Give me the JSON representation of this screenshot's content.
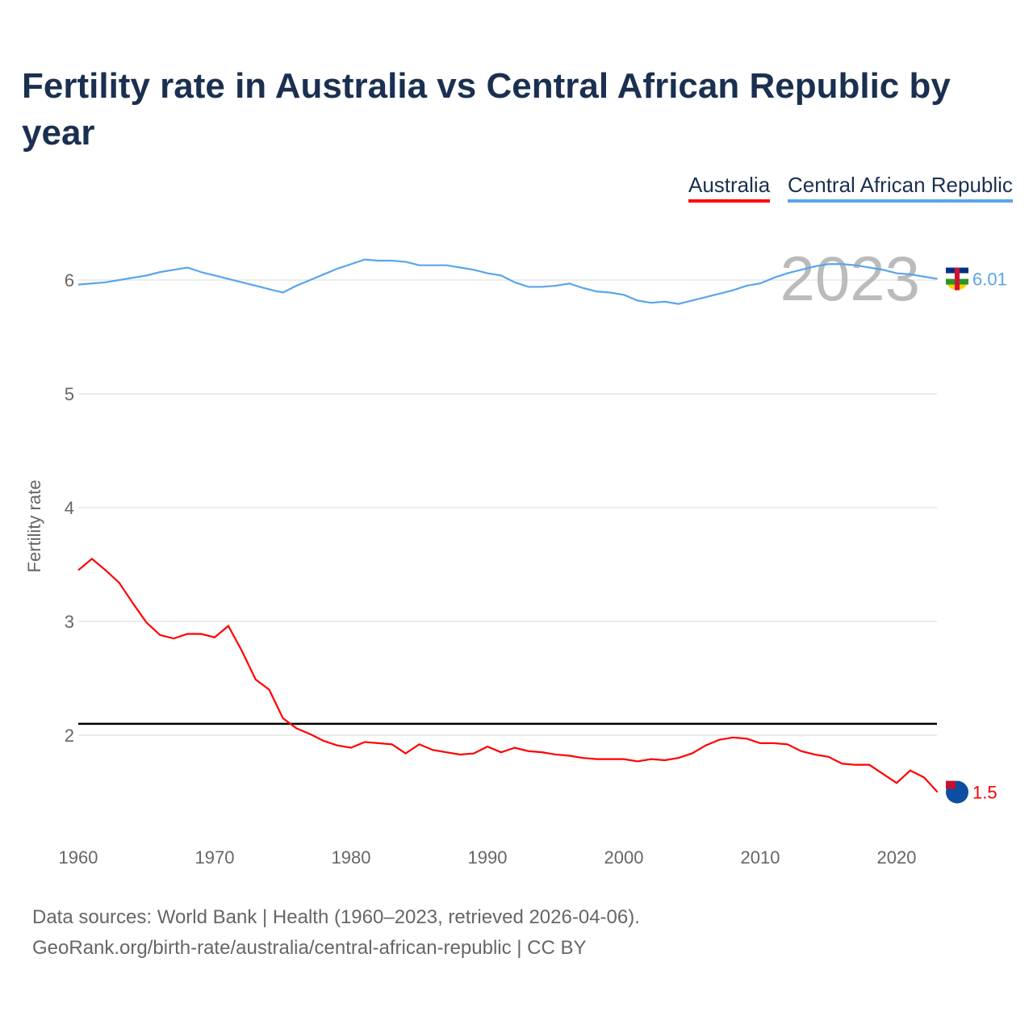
{
  "title": "Fertility rate in Australia vs Central African Republic by year",
  "footer": {
    "line1": "Data sources: World Bank | Health (1960–2023, retrieved 2026-04-06).",
    "line2": "GeoRank.org/birth-rate/australia/central-african-republic | CC BY"
  },
  "chart_data": {
    "type": "line",
    "title": "Fertility rate in Australia vs Central African Republic by year",
    "xlabel": "",
    "ylabel": "Fertility rate",
    "xlim": [
      1960,
      2023
    ],
    "ylim": [
      1.2,
      6.5
    ],
    "xticks": [
      1960,
      1970,
      1980,
      1990,
      2000,
      2010,
      2020
    ],
    "yticks": [
      2,
      3,
      4,
      5,
      6
    ],
    "grid": true,
    "legend": "top-right",
    "year_label": "2023",
    "reference_line": {
      "value": 2.1,
      "color": "#000000"
    },
    "x": [
      1960,
      1961,
      1962,
      1963,
      1964,
      1965,
      1966,
      1967,
      1968,
      1969,
      1970,
      1971,
      1972,
      1973,
      1974,
      1975,
      1976,
      1977,
      1978,
      1979,
      1980,
      1981,
      1982,
      1983,
      1984,
      1985,
      1986,
      1987,
      1988,
      1989,
      1990,
      1991,
      1992,
      1993,
      1994,
      1995,
      1996,
      1997,
      1998,
      1999,
      2000,
      2001,
      2002,
      2003,
      2004,
      2005,
      2006,
      2007,
      2008,
      2009,
      2010,
      2011,
      2012,
      2013,
      2014,
      2015,
      2016,
      2017,
      2018,
      2019,
      2020,
      2021,
      2022,
      2023
    ],
    "series": [
      {
        "name": "Australia",
        "color": "#ff0000",
        "end_label": "1.5",
        "flag": "australia-flag",
        "values": [
          3.45,
          3.55,
          3.45,
          3.34,
          3.16,
          2.99,
          2.88,
          2.85,
          2.89,
          2.89,
          2.86,
          2.96,
          2.74,
          2.49,
          2.4,
          2.15,
          2.06,
          2.01,
          1.95,
          1.91,
          1.89,
          1.94,
          1.93,
          1.92,
          1.84,
          1.92,
          1.87,
          1.85,
          1.83,
          1.84,
          1.9,
          1.85,
          1.89,
          1.86,
          1.85,
          1.83,
          1.82,
          1.8,
          1.79,
          1.79,
          1.79,
          1.77,
          1.79,
          1.78,
          1.8,
          1.84,
          1.91,
          1.96,
          1.98,
          1.97,
          1.93,
          1.93,
          1.92,
          1.86,
          1.83,
          1.81,
          1.75,
          1.74,
          1.74,
          1.66,
          1.58,
          1.69,
          1.63,
          1.5
        ]
      },
      {
        "name": "Central African Republic",
        "color": "#5aa5ea",
        "end_label": "6.01",
        "flag": "car-flag",
        "values": [
          5.96,
          5.97,
          5.98,
          6.0,
          6.02,
          6.04,
          6.07,
          6.09,
          6.11,
          6.07,
          6.04,
          6.01,
          5.98,
          5.95,
          5.92,
          5.89,
          5.95,
          6.0,
          6.05,
          6.1,
          6.14,
          6.18,
          6.17,
          6.17,
          6.16,
          6.13,
          6.13,
          6.13,
          6.11,
          6.09,
          6.06,
          6.04,
          5.98,
          5.94,
          5.94,
          5.95,
          5.97,
          5.93,
          5.9,
          5.89,
          5.87,
          5.82,
          5.8,
          5.81,
          5.79,
          5.82,
          5.85,
          5.88,
          5.91,
          5.95,
          5.97,
          6.02,
          6.06,
          6.09,
          6.12,
          6.14,
          6.14,
          6.13,
          6.11,
          6.09,
          6.06,
          6.05,
          6.03,
          6.01
        ]
      }
    ]
  }
}
